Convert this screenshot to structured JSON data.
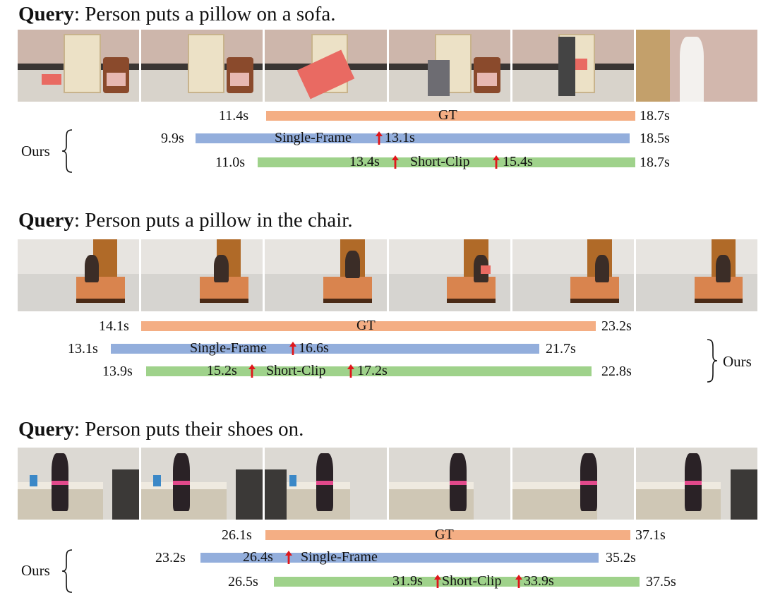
{
  "colors": {
    "gt": "#f4ae84",
    "single_frame": "#93aedc",
    "short_clip": "#9fd28b",
    "arrow": "#e0161b"
  },
  "panels": [
    {
      "query_label": "Query",
      "query_text": ": Person puts a pillow on a sofa.",
      "gt": {
        "start": "11.4s",
        "end": "18.7s",
        "label": "GT"
      },
      "single_frame": {
        "start": "9.9s",
        "end": "18.5s",
        "label": "Single-Frame",
        "peak": "13.1s"
      },
      "short_clip": {
        "start": "11.0s",
        "end": "18.7s",
        "label": "Short-Clip",
        "peak_left": "13.4s",
        "peak_right": "15.4s"
      },
      "ours": "Ours"
    },
    {
      "query_label": "Query",
      "query_text": ": Person puts a pillow in the chair.",
      "gt": {
        "start": "14.1s",
        "end": "23.2s",
        "label": "GT"
      },
      "single_frame": {
        "start": "13.1s",
        "end": "21.7s",
        "label": "Single-Frame",
        "peak": "16.6s"
      },
      "short_clip": {
        "start": "13.9s",
        "end": "22.8s",
        "label": "Short-Clip",
        "peak_left": "15.2s",
        "peak_right": "17.2s"
      },
      "ours": "Ours"
    },
    {
      "query_label": "Query",
      "query_text": ": Person puts their shoes on.",
      "gt": {
        "start": "26.1s",
        "end": "37.1s",
        "label": "GT"
      },
      "single_frame": {
        "start": "23.2s",
        "end": "35.2s",
        "label": "Single-Frame",
        "peak": "26.4s"
      },
      "short_clip": {
        "start": "26.5s",
        "end": "37.5s",
        "label": "Short-Clip",
        "peak_left": "31.9s",
        "peak_right": "33.9s"
      },
      "ours": "Ours"
    }
  ]
}
